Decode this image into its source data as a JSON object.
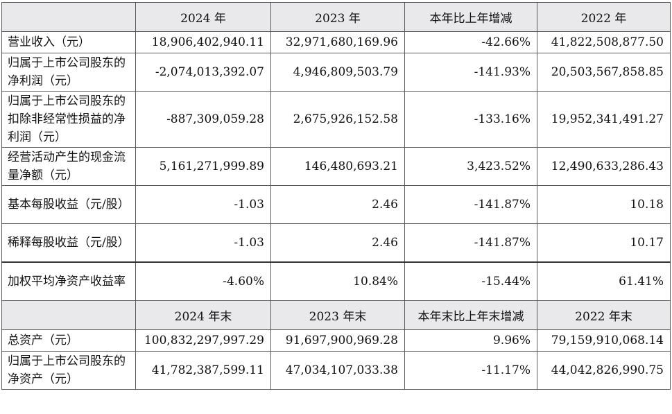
{
  "header1": [
    "",
    "2024 年",
    "2023 年",
    "本年比上年增减",
    "2022 年"
  ],
  "rows1": [
    {
      "label": "营业收入（元）",
      "v2024": "18,906,402,940.11",
      "v2023": "32,971,680,169.96",
      "change": "-42.66%",
      "v2022": "41,822,508,877.50"
    },
    {
      "label": "归属于上市公司股东的净利润（元）",
      "v2024": "-2,074,013,392.07",
      "v2023": "4,946,809,503.79",
      "change": "-141.93%",
      "v2022": "20,503,567,858.85"
    },
    {
      "label": "归属于上市公司股东的扣除非经常性损益的净利润（元）",
      "v2024": "-887,309,059.28",
      "v2023": "2,675,926,152.58",
      "change": "-133.16%",
      "v2022": "19,952,341,491.27"
    },
    {
      "label": "经营活动产生的现金流量净额（元）",
      "v2024": "5,161,271,999.89",
      "v2023": "146,480,693.21",
      "change": "3,423.52%",
      "v2022": "12,490,633,286.43"
    },
    {
      "label": "基本每股收益（元/股）",
      "v2024": "-1.03",
      "v2023": "2.46",
      "change": "-141.87%",
      "v2022": "10.18"
    },
    {
      "label": "稀释每股收益（元/股）",
      "v2024": "-1.03",
      "v2023": "2.46",
      "change": "-141.87%",
      "v2022": "10.17"
    },
    {
      "label": "加权平均净资产收益率",
      "v2024": "-4.60%",
      "v2023": "10.84%",
      "change": "-15.44%",
      "v2022": "61.41%"
    }
  ],
  "header2": [
    "",
    "2024 年末",
    "2023 年末",
    "本年末比上年末增减",
    "2022 年末"
  ],
  "rows2": [
    {
      "label": "总资产（元）",
      "v2024": "100,832,297,997.29",
      "v2023": "91,697,900,969.28",
      "change": "9.96%",
      "v2022": "79,159,910,068.14"
    },
    {
      "label": "归属于上市公司股东的净资产（元）",
      "v2024": "41,782,387,599.11",
      "v2023": "47,034,107,033.38",
      "change": "-11.17%",
      "v2022": "44,042,826,990.75"
    }
  ]
}
